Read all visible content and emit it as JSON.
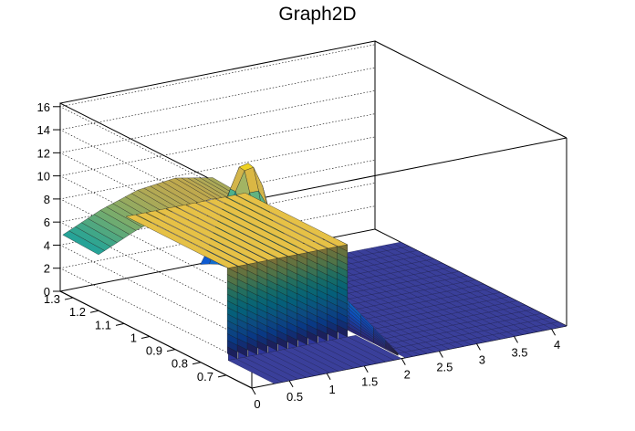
{
  "chart_data": {
    "type": "surface",
    "title": "Graph2D",
    "xlabel": "",
    "ylabel": "",
    "zlabel": "",
    "x_range": [
      0,
      4.2
    ],
    "y_range": [
      0.6,
      1.35
    ],
    "z_range": [
      0,
      16.3
    ],
    "x_ticks": [
      "0",
      "0.5",
      "1",
      "1.5",
      "2",
      "2.5",
      "3",
      "3.5",
      "4"
    ],
    "y_ticks": [
      "0.7",
      "0.8",
      "0.9",
      "1",
      "1.1",
      "1.2",
      "1.3"
    ],
    "z_ticks": [
      "0",
      "2",
      "4",
      "6",
      "8",
      "10",
      "12",
      "14",
      "16"
    ],
    "grid": true,
    "palette": [
      "#352a87",
      "#0f5cdd",
      "#1481d6",
      "#06a4ca",
      "#2eb7a4",
      "#87bf77",
      "#d1bb59",
      "#fec832",
      "#f9fb0e"
    ],
    "bars": {
      "x_from": 0.3,
      "x_to": 1.9,
      "y_from": 0.78,
      "y_to": 1.18,
      "top_z": 8.0,
      "count": 12
    },
    "ridge": {
      "x": [
        0,
        0.5,
        1.0,
        1.5,
        2.0
      ],
      "z": [
        5.0,
        6.5,
        7.6,
        8.0,
        7.4
      ],
      "y_at": 1.34
    },
    "peak": {
      "x": 2.0,
      "y": 1.2,
      "z": 10.4
    },
    "floor_region": {
      "x_from": 2.05,
      "x_to": 4.2,
      "y_from": 0.6,
      "y_to": 1.25,
      "z": 0
    }
  }
}
